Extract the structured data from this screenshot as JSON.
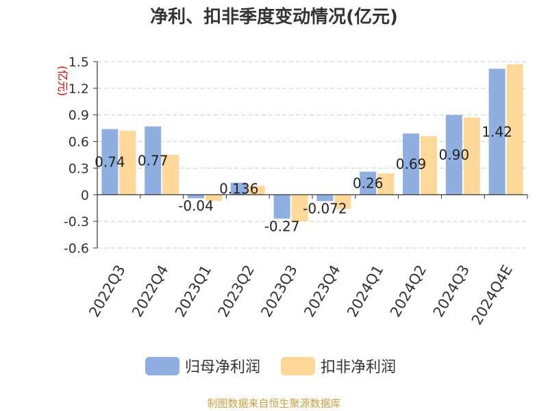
{
  "chart_data": {
    "type": "bar",
    "title": "净利、扣非季度变动情况(亿元)",
    "ylabel": "(亿元)",
    "categories": [
      "2022Q3",
      "2022Q4",
      "2023Q1",
      "2023Q2",
      "2023Q3",
      "2023Q4",
      "2024Q1",
      "2024Q2",
      "2024Q3",
      "2024Q4E"
    ],
    "series": [
      {
        "name": "归母净利润",
        "color": "#8eafdf",
        "values": [
          0.74,
          0.77,
          -0.04,
          0.136,
          -0.27,
          -0.072,
          0.26,
          0.69,
          0.9,
          1.42
        ],
        "labels": [
          "0.74",
          "0.77",
          "-0.04",
          "0.136",
          "-0.27",
          "-0.072",
          "0.26",
          "0.69",
          "0.90",
          "1.42"
        ]
      },
      {
        "name": "扣非净利润",
        "color": "#fdd899",
        "values": [
          0.72,
          0.45,
          -0.07,
          0.1,
          -0.3,
          -0.16,
          0.24,
          0.66,
          0.87,
          1.47
        ]
      }
    ],
    "yticks": [
      -0.6,
      -0.3,
      0,
      0.3,
      0.6,
      0.9,
      1.2,
      1.5
    ],
    "ytick_labels": [
      "-0.6",
      "-0.3",
      "0",
      "0.3",
      "0.6",
      "0.9",
      "1.2",
      "1.5"
    ],
    "ylim": [
      -0.6,
      1.5
    ],
    "grid": true,
    "legend_position": "bottom"
  },
  "source": "制图数据来自恒生聚源数据库"
}
